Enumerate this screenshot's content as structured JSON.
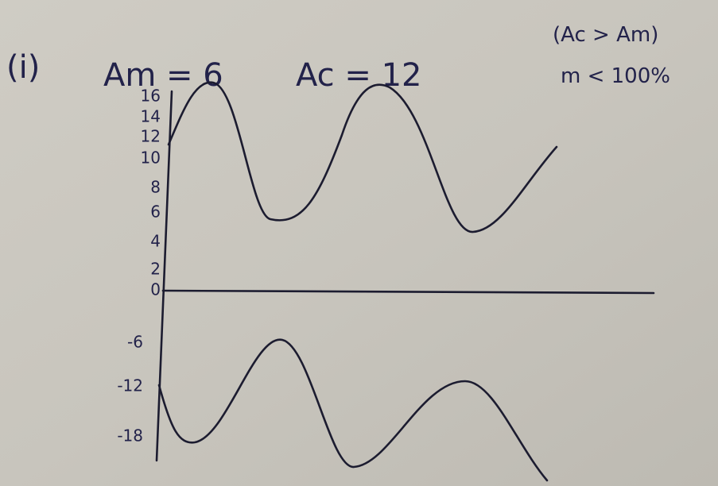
{
  "header": {
    "label": "(i)",
    "am": "Am = 6",
    "ac": "Ac = 12"
  },
  "notes": [
    "(Ac > Am)",
    "m < 100%"
  ],
  "axis_labels": [
    "16",
    "14",
    "12",
    "10",
    "8",
    "6",
    "4",
    "2",
    "0",
    "-6",
    "-12",
    "-18"
  ]
}
